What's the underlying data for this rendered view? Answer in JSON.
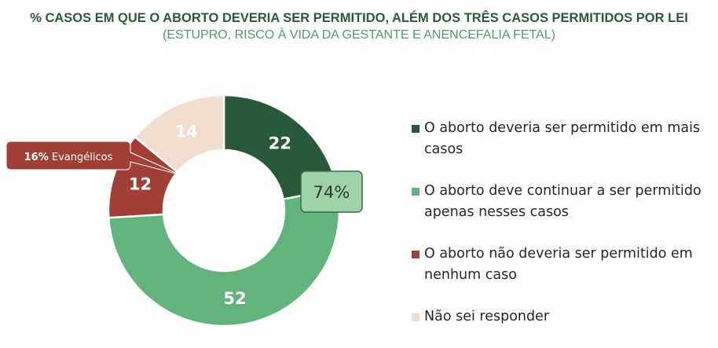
{
  "title": "% CASOS EM QUE O ABORTO DEVERIA SER PERMITIDO, ALÉM DOS TRÊS CASOS PERMITIDOS POR LEI",
  "subtitle": "(ESTUPRO, RISCO À VIDA DA GESTANTE E ANENCEFALIA FETAL)",
  "chart_data": {
    "type": "pie",
    "subtype": "donut",
    "title": "% CASOS EM QUE O ABORTO DEVERIA SER PERMITIDO, ALÉM DOS TRÊS CASOS PERMITIDOS POR LEI",
    "subtitle": "(ESTUPRO, RISCO À VIDA DA GESTANTE E ANENCEFALIA FETAL)",
    "legend_position": "right",
    "slices": [
      {
        "label": "O aborto deveria ser permitido em mais casos",
        "value": 22,
        "color": "#285a38"
      },
      {
        "label": "O aborto deve continuar a ser permitido apenas nesses casos",
        "value": 52,
        "color": "#62b37c"
      },
      {
        "label": "O aborto não deveria ser permitido em nenhum caso",
        "value": 12,
        "color": "#a13f36"
      },
      {
        "label": "Não sei responder",
        "value": 14,
        "color": "#f3ddd1"
      }
    ],
    "annotations": [
      {
        "text": "74%",
        "fill": "#9ed3a9",
        "border": "#3d6b4a",
        "text_color": "#2e3b31"
      },
      {
        "bold": "16%",
        "text": " Evangélicos",
        "fill": "#a13f36",
        "text_color": "#ffffff"
      }
    ]
  }
}
